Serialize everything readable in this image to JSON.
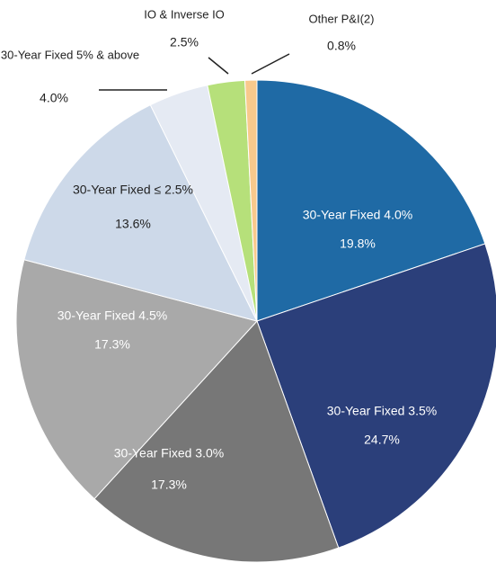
{
  "chart_data": {
    "type": "pie",
    "categories": [
      "30-Year Fixed 4.0%",
      "30-Year Fixed 3.5%",
      "30-Year Fixed 3.0%",
      "30-Year Fixed 4.5%",
      "30-Year Fixed ≤ 2.5%",
      "30-Year Fixed 5% & above",
      "IO & Inverse IO",
      "Other P&I(2)"
    ],
    "values": [
      19.8,
      24.7,
      17.3,
      17.3,
      13.6,
      4.0,
      2.5,
      0.8
    ],
    "value_labels": [
      "19.8%",
      "24.7%",
      "17.3%",
      "17.3%",
      "13.6%",
      "4.0%",
      "2.5%",
      "0.8%"
    ],
    "colors": [
      "#1f6aa5",
      "#2b3f7a",
      "#777777",
      "#a9a9a9",
      "#cdd9e9",
      "#e5eaf3",
      "#b6e07a",
      "#f8c98c"
    ]
  }
}
